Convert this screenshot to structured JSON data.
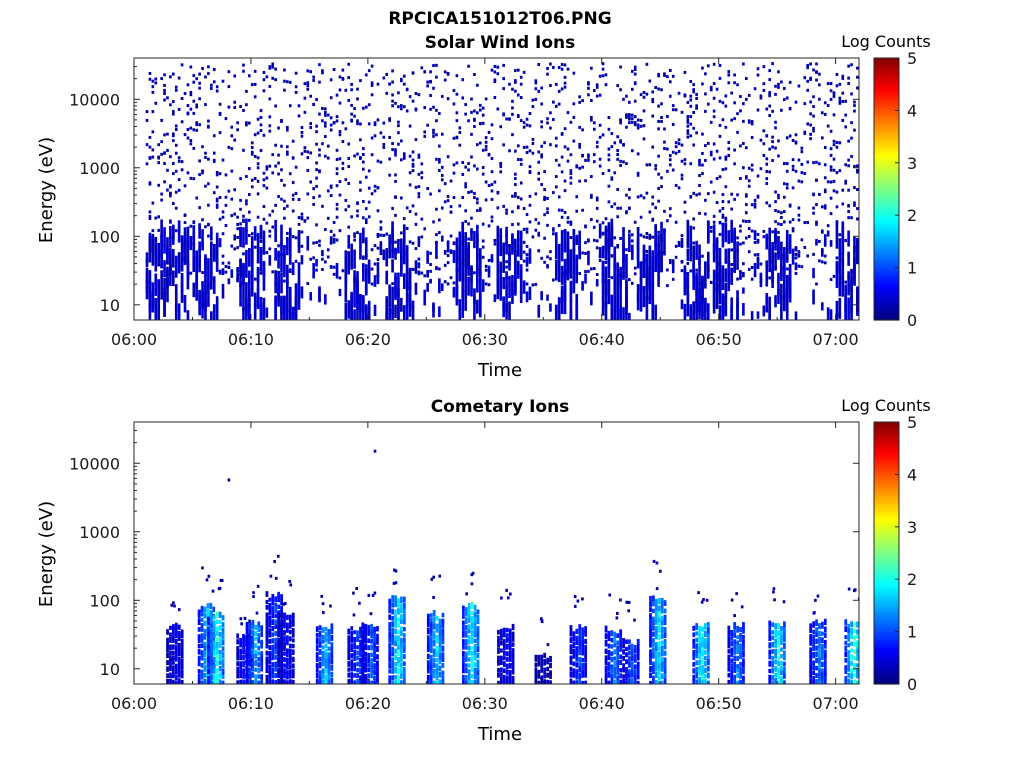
{
  "figure_title": "RPCICA151012T06.PNG",
  "colors": {
    "colormap": [
      "#00007f",
      "#0000ff",
      "#007fff",
      "#00ffff",
      "#7fff7f",
      "#ffff00",
      "#ff7f00",
      "#ff0000",
      "#7f0000"
    ]
  },
  "chart_data": [
    {
      "type": "heatmap",
      "title": "Solar Wind Ions",
      "xlabel": "Time",
      "ylabel": "Energy (eV)",
      "xticks": [
        "06:00",
        "06:10",
        "06:20",
        "06:30",
        "06:40",
        "06:50",
        "07:00"
      ],
      "xlim": [
        "06:00",
        "07:02"
      ],
      "ylog": true,
      "ylim": [
        6,
        40000
      ],
      "yticks": [
        10,
        100,
        1000,
        10000
      ],
      "ytick_labels": [
        "10",
        "100",
        "1000",
        "10000"
      ],
      "colorbar_label": "Log Counts",
      "colorbar_ticks": [
        "0",
        "1",
        "2",
        "3",
        "4",
        "5"
      ],
      "clim": [
        0,
        5
      ],
      "data_start": "06:01",
      "description_values": {
        "low_energy_bursts_minutes": [
          1.5,
          3.5,
          6,
          10,
          13,
          19,
          22.5,
          28.5,
          32,
          37,
          41,
          44,
          48,
          50.5,
          55,
          61
        ],
        "scatter_energy_range_eV": [
          20,
          35000
        ],
        "typical_log_counts": 0.2
      }
    },
    {
      "type": "heatmap",
      "title": "Cometary Ions",
      "xlabel": "Time",
      "ylabel": "Energy (eV)",
      "xticks": [
        "06:00",
        "06:10",
        "06:20",
        "06:30",
        "06:40",
        "06:50",
        "07:00"
      ],
      "xlim": [
        "06:00",
        "07:02"
      ],
      "ylog": true,
      "ylim": [
        6,
        40000
      ],
      "yticks": [
        10,
        100,
        1000,
        10000
      ],
      "ytick_labels": [
        "10",
        "100",
        "1000",
        "10000"
      ],
      "colorbar_label": "Log Counts",
      "colorbar_ticks": [
        "0",
        "1",
        "2",
        "3",
        "4",
        "5"
      ],
      "clim": [
        0,
        5
      ],
      "bursts": [
        {
          "t": 3.5,
          "emax": 40,
          "peak": 0.5
        },
        {
          "t": 6.2,
          "emax": 80,
          "peak": 1.6
        },
        {
          "t": 7.0,
          "emax": 60,
          "peak": 1.9
        },
        {
          "t": 9.5,
          "emax": 30,
          "peak": 0.8
        },
        {
          "t": 10.3,
          "emax": 45,
          "peak": 1.4
        },
        {
          "t": 12.0,
          "emax": 120,
          "peak": 0.9
        },
        {
          "t": 13.0,
          "emax": 60,
          "peak": 0.6
        },
        {
          "t": 16.3,
          "emax": 40,
          "peak": 1.5
        },
        {
          "t": 19.0,
          "emax": 40,
          "peak": 0.9
        },
        {
          "t": 20.2,
          "emax": 40,
          "peak": 1.0
        },
        {
          "t": 22.5,
          "emax": 100,
          "peak": 1.8
        },
        {
          "t": 25.8,
          "emax": 60,
          "peak": 1.6
        },
        {
          "t": 28.8,
          "emax": 80,
          "peak": 1.8
        },
        {
          "t": 31.8,
          "emax": 40,
          "peak": 0.6
        },
        {
          "t": 35.0,
          "emax": 15,
          "peak": 0.3
        },
        {
          "t": 38.0,
          "emax": 40,
          "peak": 0.9
        },
        {
          "t": 41.0,
          "emax": 35,
          "peak": 1.2
        },
        {
          "t": 42.5,
          "emax": 25,
          "peak": 1.0
        },
        {
          "t": 44.8,
          "emax": 100,
          "peak": 1.7
        },
        {
          "t": 48.5,
          "emax": 45,
          "peak": 1.9
        },
        {
          "t": 51.5,
          "emax": 40,
          "peak": 1.2
        },
        {
          "t": 55.0,
          "emax": 45,
          "peak": 1.8
        },
        {
          "t": 58.5,
          "emax": 45,
          "peak": 1.2
        },
        {
          "t": 61.5,
          "emax": 45,
          "peak": 2.0
        }
      ],
      "isolated_points": [
        {
          "t": 8.0,
          "e": 5700
        },
        {
          "t": 20.5,
          "e": 15000
        }
      ]
    }
  ]
}
